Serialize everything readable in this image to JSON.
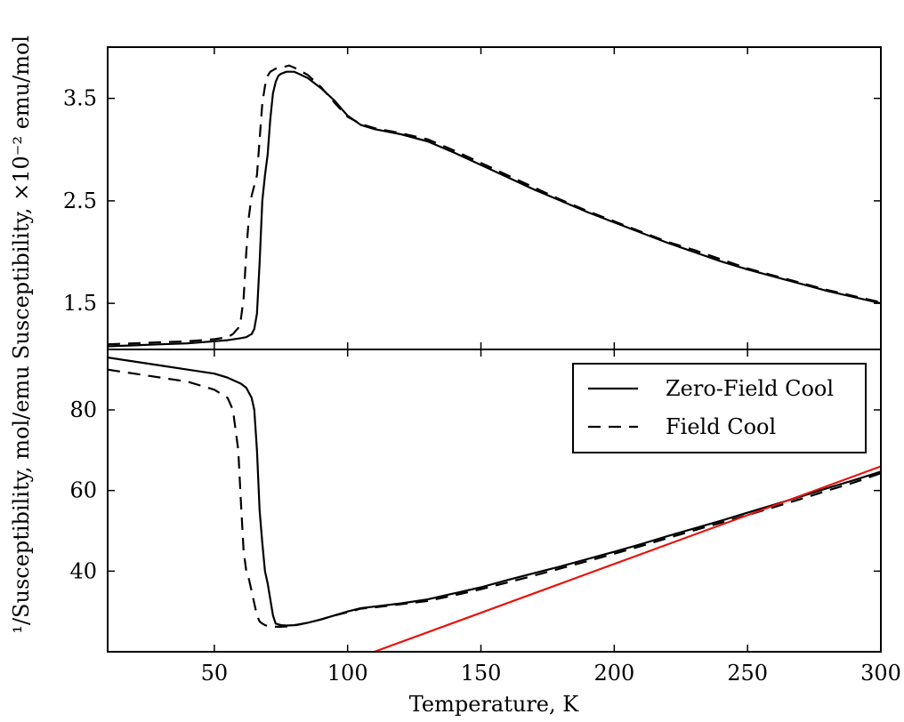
{
  "chart_data": [
    {
      "type": "line",
      "xlim": [
        10,
        300
      ],
      "ylim": [
        1.05,
        4.0
      ],
      "ylabel": "Susceptibility, ×10⁻² emu/mol",
      "xticks": [
        50,
        100,
        150,
        200,
        250,
        300
      ],
      "yticks": [
        1.5,
        2.5,
        3.5
      ],
      "ytick_labels": [
        "1.5",
        "2.5",
        "3.5"
      ],
      "series": [
        {
          "name": "Zero-Field Cool",
          "style": "solid",
          "color": "#000000",
          "x": [
            10,
            20,
            30,
            40,
            50,
            55,
            60,
            62,
            64,
            65,
            66,
            67,
            68,
            69,
            70,
            71,
            72,
            73,
            74,
            75,
            77,
            80,
            85,
            90,
            95,
            100,
            105,
            110,
            120,
            130,
            140,
            150,
            160,
            170,
            180,
            190,
            200,
            210,
            220,
            230,
            240,
            250,
            260,
            270,
            280,
            290,
            300
          ],
          "y": [
            1.08,
            1.09,
            1.1,
            1.11,
            1.13,
            1.14,
            1.16,
            1.17,
            1.2,
            1.25,
            1.4,
            1.9,
            2.5,
            2.75,
            2.95,
            3.3,
            3.55,
            3.66,
            3.72,
            3.74,
            3.76,
            3.76,
            3.7,
            3.6,
            3.48,
            3.33,
            3.24,
            3.2,
            3.15,
            3.08,
            2.97,
            2.85,
            2.73,
            2.61,
            2.5,
            2.39,
            2.29,
            2.19,
            2.09,
            2.0,
            1.91,
            1.83,
            1.76,
            1.69,
            1.62,
            1.56,
            1.5
          ]
        },
        {
          "name": "Field Cool",
          "style": "dashed",
          "color": "#000000",
          "x": [
            10,
            20,
            30,
            40,
            50,
            55,
            57,
            59,
            60,
            61,
            62,
            63,
            64,
            65,
            66,
            67,
            68,
            69,
            70,
            71,
            73,
            75,
            78,
            80,
            85,
            90,
            95,
            100,
            105,
            110,
            120,
            130,
            140,
            150,
            160,
            170,
            180,
            190,
            200,
            210,
            220,
            230,
            240,
            250,
            260,
            270,
            280,
            290,
            300
          ],
          "y": [
            1.1,
            1.11,
            1.12,
            1.13,
            1.15,
            1.17,
            1.2,
            1.26,
            1.35,
            1.55,
            2.0,
            2.35,
            2.55,
            2.65,
            2.75,
            3.1,
            3.45,
            3.62,
            3.72,
            3.76,
            3.79,
            3.8,
            3.82,
            3.8,
            3.73,
            3.61,
            3.46,
            3.32,
            3.25,
            3.21,
            3.16,
            3.1,
            2.99,
            2.87,
            2.75,
            2.63,
            2.51,
            2.4,
            2.3,
            2.2,
            2.1,
            2.02,
            1.93,
            1.84,
            1.77,
            1.7,
            1.63,
            1.57,
            1.51
          ]
        }
      ]
    },
    {
      "type": "line",
      "xlim": [
        10,
        300
      ],
      "ylim": [
        20,
        95
      ],
      "xlabel": "Temperature, K",
      "ylabel": "¹/Susceptibility, mol/emu",
      "xticks": [
        50,
        100,
        150,
        200,
        250,
        300
      ],
      "xtick_labels": [
        "50",
        "100",
        "150",
        "200",
        "250",
        "300"
      ],
      "yticks": [
        40,
        60,
        80
      ],
      "ytick_labels": [
        "40",
        "60",
        "80"
      ],
      "legend_position": "top-right",
      "series": [
        {
          "name": "Zero-Field Cool",
          "style": "solid",
          "color": "#000000",
          "x": [
            10,
            20,
            30,
            40,
            50,
            55,
            60,
            62,
            64,
            65,
            66,
            67,
            68,
            69,
            70,
            71,
            72,
            73,
            74,
            75,
            77,
            80,
            85,
            90,
            95,
            100,
            105,
            110,
            120,
            130,
            140,
            150,
            160,
            170,
            180,
            190,
            200,
            210,
            220,
            230,
            240,
            250,
            260,
            270,
            280,
            290,
            300
          ],
          "y": [
            93,
            92,
            91,
            90,
            89,
            88,
            86.5,
            85.5,
            83,
            80,
            70,
            55,
            47,
            40,
            37,
            33,
            29,
            27,
            26.8,
            26.6,
            26.5,
            26.6,
            27.2,
            28,
            29,
            30,
            30.8,
            31.2,
            32,
            33,
            34.5,
            36,
            37.8,
            39.5,
            41.2,
            43,
            44.8,
            46.7,
            48.7,
            50.6,
            52.5,
            54.5,
            56.5,
            58.5,
            60.6,
            62.6,
            64.7
          ]
        },
        {
          "name": "Field Cool",
          "style": "dashed",
          "color": "#000000",
          "x": [
            10,
            20,
            30,
            40,
            50,
            55,
            57,
            59,
            60,
            61,
            62,
            63,
            64,
            65,
            66,
            67,
            68,
            69,
            70,
            71,
            73,
            75,
            78,
            80,
            85,
            90,
            95,
            100,
            105,
            110,
            120,
            130,
            140,
            150,
            160,
            170,
            180,
            190,
            200,
            210,
            220,
            230,
            240,
            250,
            260,
            270,
            280,
            290,
            300
          ],
          "y": [
            90,
            89,
            88,
            87,
            85,
            83,
            80,
            70,
            57,
            45,
            40,
            38,
            35,
            32,
            29,
            27.5,
            27,
            26.6,
            26.4,
            26.3,
            26.2,
            26.2,
            26.3,
            26.5,
            27.2,
            28,
            29,
            29.8,
            30.7,
            31,
            31.8,
            32.6,
            34,
            35.5,
            37.2,
            38.9,
            40.7,
            42.5,
            44.3,
            46.2,
            48.2,
            50.1,
            52,
            53.9,
            55.9,
            57.9,
            60,
            62,
            64.3
          ]
        },
        {
          "name": "",
          "style": "solid",
          "color": "#e8120c",
          "x": [
            110,
            300
          ],
          "y": [
            20,
            66
          ]
        }
      ],
      "legend": [
        {
          "label": "Zero-Field Cool",
          "style": "solid"
        },
        {
          "label": "Field Cool",
          "style": "dashed"
        }
      ]
    }
  ]
}
